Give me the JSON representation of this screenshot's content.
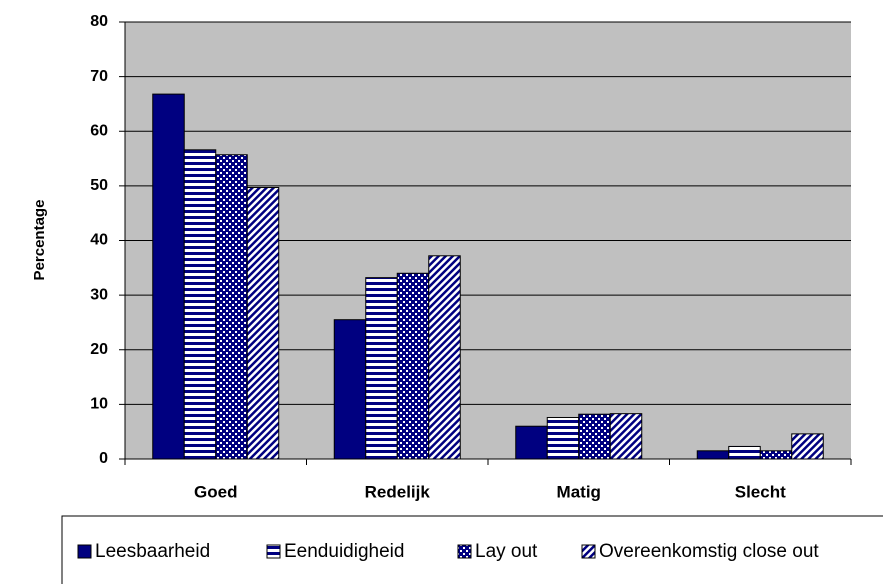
{
  "chart_data": {
    "type": "bar",
    "y_label": "Percentage",
    "categories": [
      "Goed",
      "Redelijk",
      "Matig",
      "Slecht"
    ],
    "series": [
      {
        "name": "Leesbaarheid",
        "color": "#000080",
        "pattern": "solid",
        "values": [
          66.8,
          25.5,
          6.0,
          1.5
        ]
      },
      {
        "name": "Eenduidigheid",
        "color": "#000080",
        "pattern": "horizontal",
        "values": [
          56.6,
          33.2,
          7.6,
          2.3
        ]
      },
      {
        "name": "Lay out",
        "color": "#000080",
        "pattern": "dots",
        "values": [
          55.7,
          34.0,
          8.2,
          1.5
        ]
      },
      {
        "name": "Overeenkomstig close out",
        "color": "#000080",
        "pattern": "diagonal",
        "values": [
          49.7,
          37.2,
          8.3,
          4.6
        ]
      }
    ],
    "ylim": [
      0,
      80
    ],
    "yticks": [
      0,
      10,
      20,
      30,
      40,
      50,
      60,
      70,
      80
    ],
    "grid": true,
    "legend": "bottom"
  }
}
